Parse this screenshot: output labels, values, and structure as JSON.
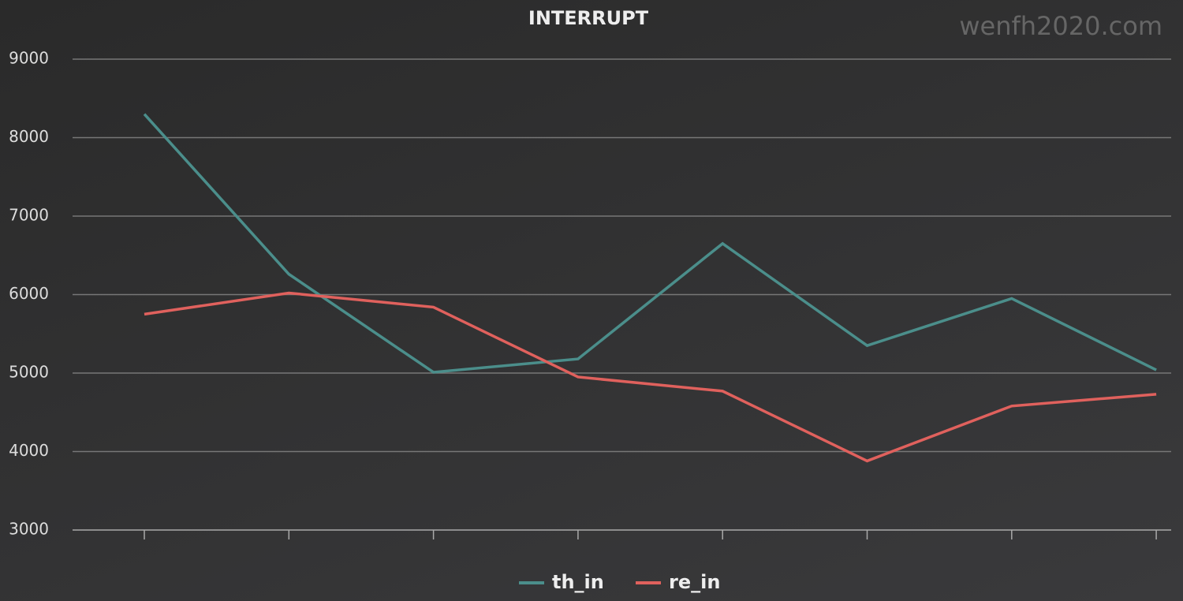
{
  "chart_data": {
    "type": "line",
    "title": "INTERRUPT",
    "watermark": "wenfh2020.com",
    "categories": [
      null,
      null,
      null,
      null,
      null,
      null,
      null,
      null
    ],
    "series": [
      {
        "name": "th_in",
        "color": "#4b8e8b",
        "values": [
          8300,
          6260,
          5010,
          5180,
          6650,
          5350,
          5950,
          5040
        ]
      },
      {
        "name": "re_in",
        "color": "#e0615d",
        "values": [
          5750,
          6020,
          5840,
          4950,
          4770,
          3880,
          4580,
          4730
        ]
      }
    ],
    "ylim": [
      3000,
      9000
    ],
    "yticks": [
      3000,
      4000,
      5000,
      6000,
      7000,
      8000,
      9000
    ],
    "grid": true
  }
}
